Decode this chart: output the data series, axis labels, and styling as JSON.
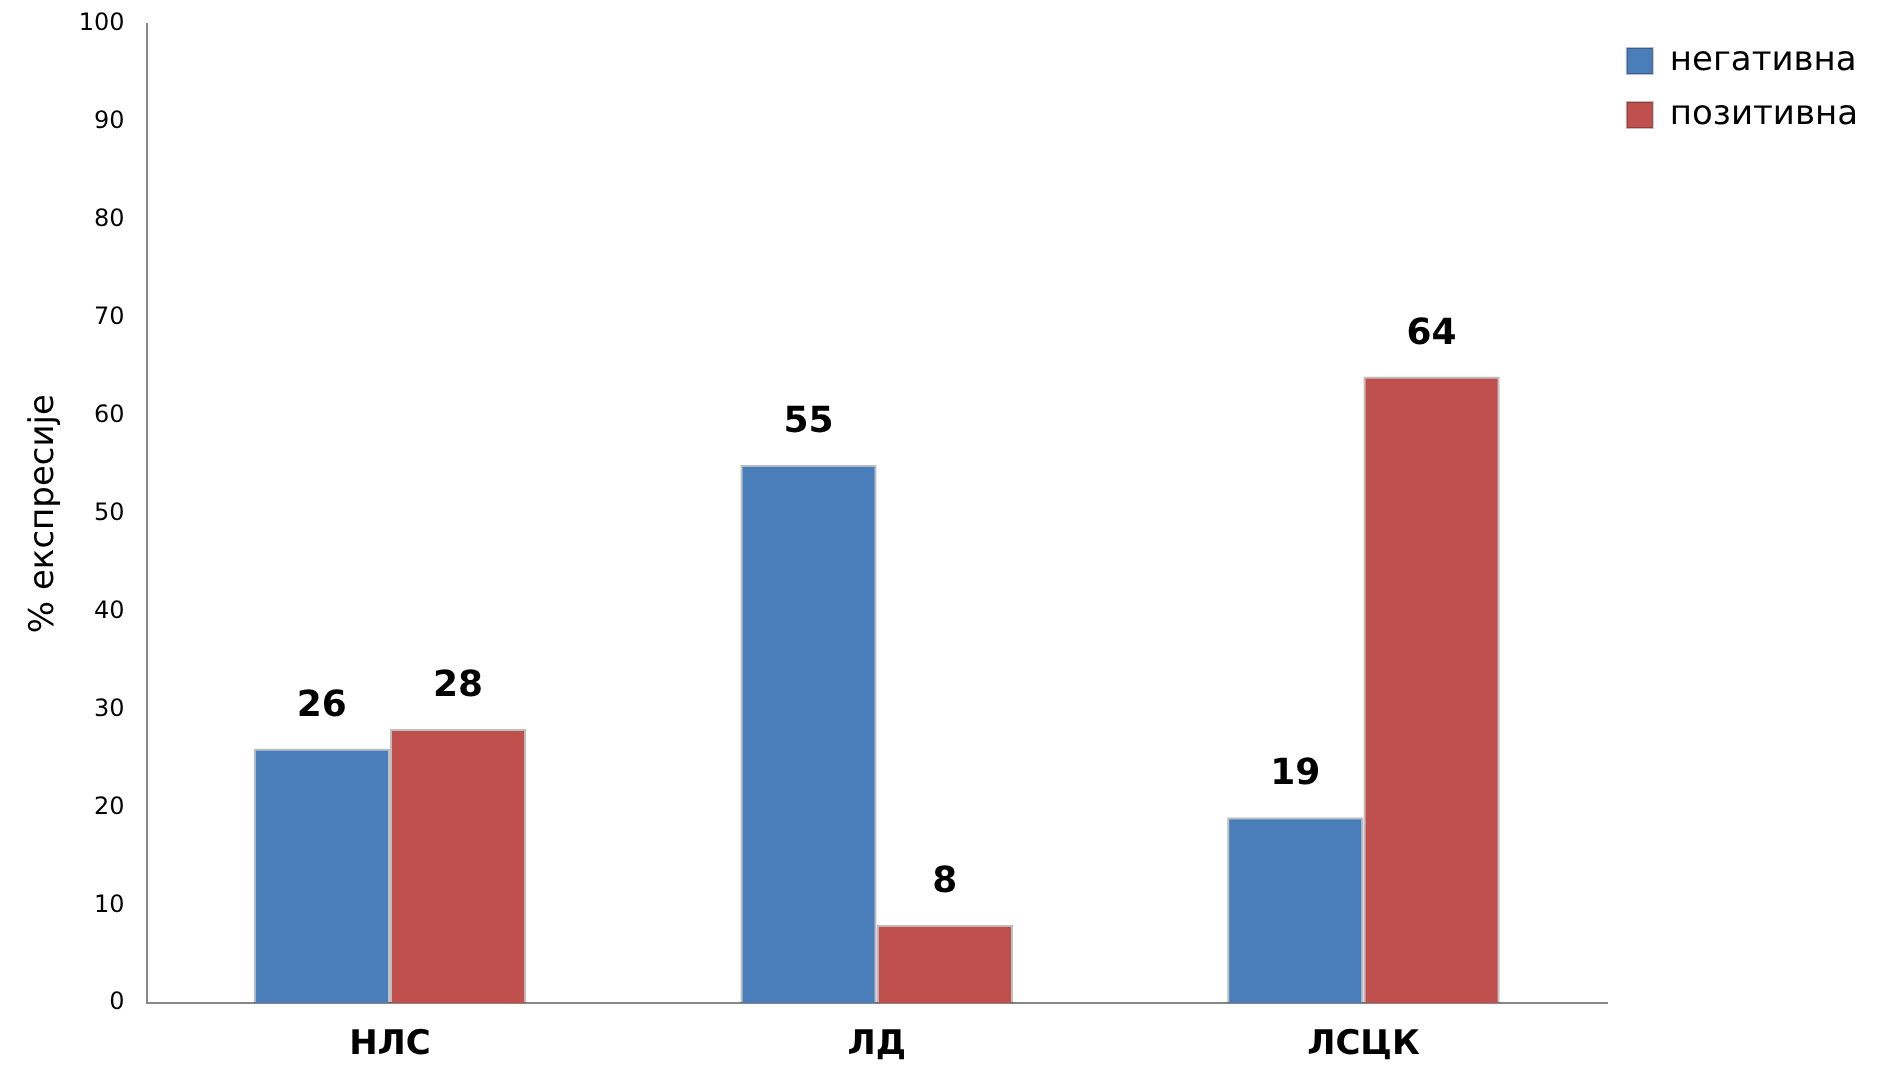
{
  "chart_data": {
    "type": "bar",
    "ylabel": "% експресије",
    "categories": [
      "НЛС",
      "ЛД",
      "ЛСЦК"
    ],
    "series": [
      {
        "name": "негативна",
        "color": "#4a7ebb",
        "values": [
          26,
          55,
          19
        ]
      },
      {
        "name": "позитивна",
        "color": "#c0504d",
        "values": [
          28,
          8,
          64
        ]
      }
    ],
    "ylim": [
      0,
      100
    ],
    "yticks": [
      0,
      10,
      20,
      30,
      40,
      50,
      60,
      70,
      80,
      90,
      100
    ],
    "grid": false,
    "legend": "top right",
    "data_labels": true
  }
}
